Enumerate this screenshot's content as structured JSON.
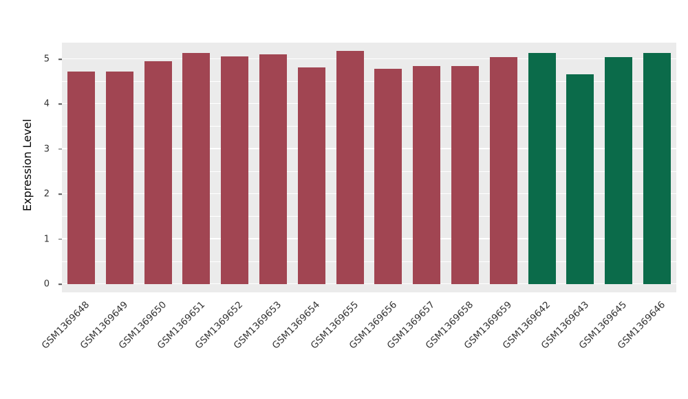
{
  "chart_data": {
    "type": "bar",
    "title": "",
    "xlabel": "",
    "ylabel": "Expression Level",
    "categories": [
      "GSM1369648",
      "GSM1369649",
      "GSM1369650",
      "GSM1369651",
      "GSM1369652",
      "GSM1369653",
      "GSM1369654",
      "GSM1369655",
      "GSM1369656",
      "GSM1369657",
      "GSM1369658",
      "GSM1369659",
      "GSM1369642",
      "GSM1369643",
      "GSM1369645",
      "GSM1369646"
    ],
    "values": [
      4.72,
      4.73,
      4.95,
      5.14,
      5.06,
      5.11,
      4.81,
      5.19,
      4.79,
      4.84,
      4.84,
      5.05,
      5.14,
      4.66,
      5.05,
      5.14
    ],
    "group_index": [
      0,
      0,
      0,
      0,
      0,
      0,
      0,
      0,
      0,
      0,
      0,
      0,
      1,
      1,
      1,
      1
    ],
    "group_colors": [
      "#A14552",
      "#0B6B4A"
    ],
    "ylim": [
      0,
      5.4
    ],
    "yticks": [
      0,
      1,
      2,
      3,
      4,
      5
    ],
    "minor_yticks": [
      0.5,
      1.5,
      2.5,
      3.5,
      4.5
    ],
    "legend": "none",
    "grid": "white major and minor horizontal gridlines on gray panel",
    "panel_background": "#ebebeb",
    "gridline_color": "#ffffff"
  }
}
